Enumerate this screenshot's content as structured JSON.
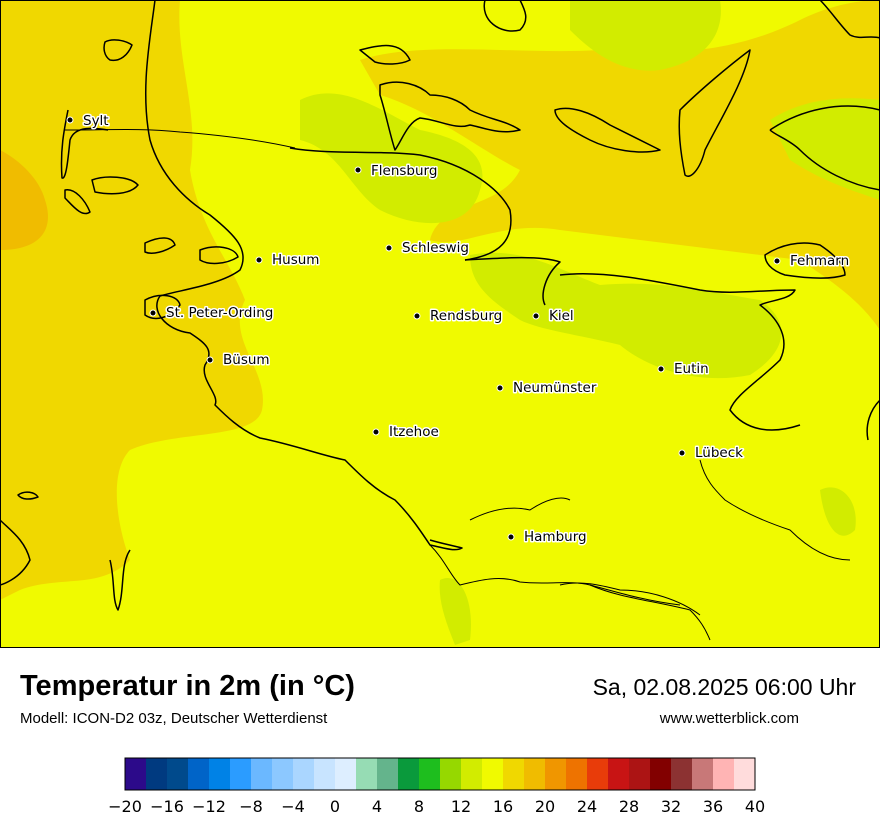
{
  "title": "Temperatur in 2m (in °C)",
  "model": "Modell: ICON-D2 03z, Deutscher Wetterdienst",
  "datetime": "Sa, 02.08.2025 06:00 Uhr",
  "website": "www.wetterblick.com",
  "cities": [
    {
      "name": "Sylt"
    },
    {
      "name": "Flensburg"
    },
    {
      "name": "Schleswig"
    },
    {
      "name": "Husum"
    },
    {
      "name": "St. Peter-Ording"
    },
    {
      "name": "Rendsburg"
    },
    {
      "name": "Kiel"
    },
    {
      "name": "Fehmarn"
    },
    {
      "name": "Büsum"
    },
    {
      "name": "Eutin"
    },
    {
      "name": "Neumünster"
    },
    {
      "name": "Itzehoe"
    },
    {
      "name": "Lübeck"
    },
    {
      "name": "Hamburg"
    }
  ],
  "legend": {
    "unit": "°C",
    "min": -20,
    "max": 40,
    "step": 2,
    "tick_labels": [
      "−20",
      "−16",
      "−12",
      "−8",
      "−4",
      "0",
      "4",
      "8",
      "12",
      "16",
      "20",
      "24",
      "28",
      "32",
      "36",
      "40"
    ],
    "colors": [
      "#2c0a8a",
      "#003a80",
      "#004a8c",
      "#0064c8",
      "#0082e6",
      "#2b9cff",
      "#6bb8ff",
      "#8cc8ff",
      "#aad6ff",
      "#c8e4ff",
      "#ddeeff",
      "#96dcb4",
      "#64b48c",
      "#0a9a3c",
      "#1ebe1e",
      "#96d800",
      "#d2ec00",
      "#f0fa00",
      "#f0d800",
      "#f0bc00",
      "#f09600",
      "#ee7300",
      "#e83c0a",
      "#c81414",
      "#ac1414",
      "#820000",
      "#8c3232",
      "#c87878",
      "#ffb4b4",
      "#ffdcdc"
    ]
  },
  "field_colors": {
    "t16": "#f0fa00",
    "t18": "#f0d800",
    "t14": "#d2ec00",
    "t20": "#f0bc00"
  }
}
